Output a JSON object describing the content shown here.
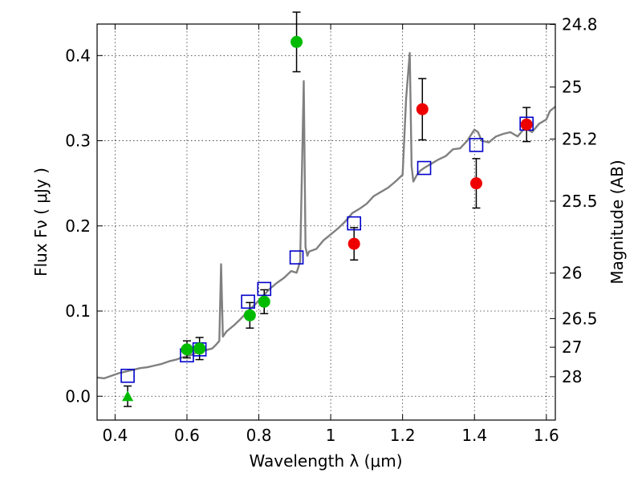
{
  "chart_data": {
    "type": "scatter",
    "xlabel": "Wavelength  λ (μm)",
    "ylabel": "Flux  Fν  ( μJy )",
    "ylabel2": "Magnitude (AB)",
    "xlim": [
      0.35,
      1.625
    ],
    "ylim": [
      -0.028,
      0.437
    ],
    "grid": true,
    "colors": {
      "spectrum": "#808080",
      "green": "#00bb00",
      "red": "#ee0000",
      "model_box": "#0000cc",
      "errorbar": "#000000",
      "grid": "#000000"
    },
    "x_ticks": [
      {
        "value": 0.4,
        "label": "0.4"
      },
      {
        "value": 0.6,
        "label": "0.6"
      },
      {
        "value": 0.8,
        "label": "0.8"
      },
      {
        "value": 1.0,
        "label": "1"
      },
      {
        "value": 1.2,
        "label": "1.2"
      },
      {
        "value": 1.4,
        "label": "1.4"
      },
      {
        "value": 1.6,
        "label": "1.6"
      }
    ],
    "y_ticks": [
      {
        "value": 0.0,
        "label": "0.0"
      },
      {
        "value": 0.1,
        "label": "0.1"
      },
      {
        "value": 0.2,
        "label": "0.2"
      },
      {
        "value": 0.3,
        "label": "0.3"
      },
      {
        "value": 0.4,
        "label": "0.4"
      }
    ],
    "mag_ticks": [
      {
        "label": "24.8",
        "mag": 24.8
      },
      {
        "label": "25",
        "mag": 25.0
      },
      {
        "label": "25.2",
        "mag": 25.2
      },
      {
        "label": "25.5",
        "mag": 25.5
      },
      {
        "label": "26",
        "mag": 26.0
      },
      {
        "label": "26.5",
        "mag": 26.5
      },
      {
        "label": "27",
        "mag": 27.0
      },
      {
        "label": "28",
        "mag": 28.0
      }
    ],
    "spectrum": {
      "x": [
        0.35,
        0.37,
        0.39,
        0.41,
        0.43,
        0.45,
        0.47,
        0.49,
        0.51,
        0.53,
        0.55,
        0.57,
        0.59,
        0.61,
        0.63,
        0.65,
        0.67,
        0.68,
        0.69,
        0.695,
        0.7,
        0.71,
        0.73,
        0.75,
        0.77,
        0.79,
        0.81,
        0.83,
        0.85,
        0.87,
        0.89,
        0.905,
        0.915,
        0.925,
        0.93,
        0.935,
        0.94,
        0.96,
        0.98,
        1.0,
        1.02,
        1.04,
        1.06,
        1.08,
        1.1,
        1.12,
        1.14,
        1.16,
        1.18,
        1.2,
        1.21,
        1.22,
        1.225,
        1.23,
        1.24,
        1.25,
        1.26,
        1.28,
        1.3,
        1.32,
        1.34,
        1.36,
        1.38,
        1.4,
        1.41,
        1.42,
        1.44,
        1.46,
        1.48,
        1.5,
        1.52,
        1.54,
        1.56,
        1.58,
        1.6,
        1.61,
        1.625
      ],
      "y": [
        0.022,
        0.021,
        0.024,
        0.027,
        0.029,
        0.031,
        0.033,
        0.034,
        0.036,
        0.038,
        0.041,
        0.043,
        0.046,
        0.048,
        0.052,
        0.054,
        0.056,
        0.06,
        0.065,
        0.155,
        0.07,
        0.076,
        0.083,
        0.091,
        0.1,
        0.108,
        0.117,
        0.126,
        0.133,
        0.139,
        0.147,
        0.145,
        0.158,
        0.37,
        0.175,
        0.165,
        0.17,
        0.173,
        0.183,
        0.19,
        0.197,
        0.205,
        0.215,
        0.22,
        0.226,
        0.235,
        0.24,
        0.245,
        0.252,
        0.26,
        0.35,
        0.403,
        0.27,
        0.252,
        0.26,
        0.265,
        0.268,
        0.273,
        0.278,
        0.282,
        0.29,
        0.291,
        0.3,
        0.313,
        0.31,
        0.3,
        0.298,
        0.305,
        0.308,
        0.31,
        0.305,
        0.315,
        0.31,
        0.32,
        0.325,
        0.335,
        0.34
      ]
    },
    "green_points": [
      {
        "x": 0.6,
        "y": 0.055,
        "err": 0.01
      },
      {
        "x": 0.635,
        "y": 0.056,
        "err": 0.013
      },
      {
        "x": 0.775,
        "y": 0.095,
        "err": 0.015
      },
      {
        "x": 0.815,
        "y": 0.111,
        "err": 0.014
      },
      {
        "x": 0.905,
        "y": 0.416,
        "err": 0.035
      }
    ],
    "green_triangle": {
      "x": 0.435,
      "y": 0.0,
      "err": 0.012
    },
    "red_points": [
      {
        "x": 1.065,
        "y": 0.179,
        "err": 0.019
      },
      {
        "x": 1.255,
        "y": 0.337,
        "err": 0.036
      },
      {
        "x": 1.405,
        "y": 0.25,
        "err": 0.029
      },
      {
        "x": 1.545,
        "y": 0.319,
        "err": 0.02
      }
    ],
    "model_points": [
      {
        "x": 0.435,
        "y": 0.024
      },
      {
        "x": 0.6,
        "y": 0.048
      },
      {
        "x": 0.635,
        "y": 0.055
      },
      {
        "x": 0.77,
        "y": 0.111
      },
      {
        "x": 0.815,
        "y": 0.126
      },
      {
        "x": 0.905,
        "y": 0.163
      },
      {
        "x": 1.065,
        "y": 0.203
      },
      {
        "x": 1.26,
        "y": 0.268
      },
      {
        "x": 1.405,
        "y": 0.295
      },
      {
        "x": 1.545,
        "y": 0.32
      }
    ]
  }
}
